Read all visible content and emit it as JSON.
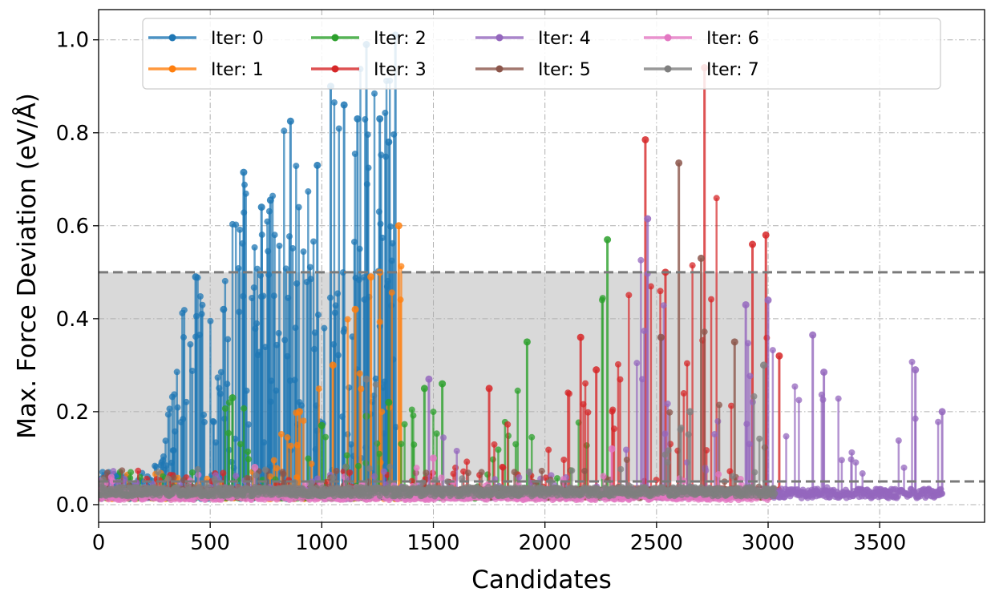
{
  "chart_data": {
    "type": "scatter",
    "title": "",
    "xlabel": "Candidates",
    "ylabel": "Max. Force Deviation (eV/Å)",
    "xlim": [
      0,
      3970
    ],
    "ylim": [
      -0.038,
      1.065
    ],
    "xticks": [
      0,
      500,
      1000,
      1500,
      2000,
      2500,
      3000,
      3500
    ],
    "yticks": [
      0.0,
      0.2,
      0.4,
      0.6,
      0.8,
      1.0
    ],
    "ytick_format": 1,
    "grid": true,
    "legend_position": "top",
    "threshold_band": {
      "low": 0.05,
      "high": 0.5,
      "fill_until_x": 3000,
      "color": "#d9d9d9"
    },
    "threshold_lines": [
      0.05,
      0.5
    ],
    "series": [
      {
        "name": "Iter: 0",
        "color": "#1f77b4",
        "range": [
          0,
          1340
        ],
        "base": 0.022,
        "spike_prob": 0.55,
        "peaks": [
          [
            435,
            0.49
          ],
          [
            560,
            0.42
          ],
          [
            650,
            0.715
          ],
          [
            730,
            0.64
          ],
          [
            770,
            0.655
          ],
          [
            860,
            0.825
          ],
          [
            980,
            0.73
          ],
          [
            1040,
            0.9
          ],
          [
            1100,
            0.86
          ],
          [
            1160,
            0.83
          ],
          [
            1200,
            0.99
          ],
          [
            1260,
            0.83
          ],
          [
            1300,
            0.78
          ],
          [
            1330,
            1.01
          ]
        ]
      },
      {
        "name": "Iter: 1",
        "color": "#ff7f0e",
        "range": [
          0,
          1360
        ],
        "base": 0.022,
        "spike_prob": 0.12,
        "peaks": [
          [
            900,
            0.2
          ],
          [
            1050,
            0.3
          ],
          [
            1150,
            0.42
          ],
          [
            1220,
            0.49
          ],
          [
            1260,
            0.5
          ],
          [
            1345,
            0.6
          ]
        ]
      },
      {
        "name": "Iter: 2",
        "color": "#2ca02c",
        "range": [
          0,
          2300
        ],
        "base": 0.023,
        "spike_prob": 0.08,
        "peaks": [
          [
            600,
            0.23
          ],
          [
            1000,
            0.17
          ],
          [
            1200,
            0.19
          ],
          [
            1300,
            0.22
          ],
          [
            1460,
            0.25
          ],
          [
            1540,
            0.26
          ],
          [
            1920,
            0.35
          ],
          [
            2280,
            0.57
          ]
        ]
      },
      {
        "name": "Iter: 3",
        "color": "#d62728",
        "range": [
          0,
          3050
        ],
        "base": 0.025,
        "spike_prob": 0.09,
        "peaks": [
          [
            1750,
            0.25
          ],
          [
            2160,
            0.36
          ],
          [
            2230,
            0.29
          ],
          [
            2450,
            0.785
          ],
          [
            2540,
            0.5
          ],
          [
            2715,
            0.94
          ],
          [
            2930,
            0.56
          ],
          [
            2990,
            0.58
          ],
          [
            3050,
            0.32
          ]
        ]
      },
      {
        "name": "Iter: 4",
        "color": "#9467bd",
        "range": [
          0,
          3780
        ],
        "base": 0.024,
        "spike_prob": 0.07,
        "peaks": [
          [
            1480,
            0.27
          ],
          [
            2460,
            0.615
          ],
          [
            2900,
            0.43
          ],
          [
            3000,
            0.44
          ],
          [
            3200,
            0.365
          ],
          [
            3250,
            0.285
          ],
          [
            3660,
            0.29
          ],
          [
            3780,
            0.2
          ]
        ]
      },
      {
        "name": "Iter: 5",
        "color": "#8c564b",
        "range": [
          0,
          3000
        ],
        "base": 0.024,
        "spike_prob": 0.07,
        "peaks": [
          [
            2520,
            0.36
          ],
          [
            2600,
            0.735
          ],
          [
            2700,
            0.53
          ],
          [
            2850,
            0.35
          ]
        ]
      },
      {
        "name": "Iter: 6",
        "color": "#e377c2",
        "range": [
          0,
          3000
        ],
        "base": 0.02,
        "spike_prob": 0.04,
        "peaks": [
          [
            700,
            0.08
          ],
          [
            1500,
            0.1
          ],
          [
            2300,
            0.12
          ]
        ]
      },
      {
        "name": "Iter: 7",
        "color": "#7f7f7f",
        "range": [
          0,
          3030
        ],
        "base": 0.028,
        "spike_prob": 0.05,
        "peaks": [
          [
            1200,
            0.27
          ],
          [
            2650,
            0.2
          ],
          [
            2980,
            0.3
          ]
        ]
      }
    ]
  }
}
